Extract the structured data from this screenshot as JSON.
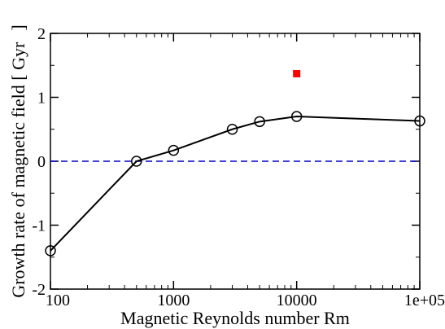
{
  "chart_data": {
    "type": "line",
    "title": "",
    "xlabel": "Magnetic Reynolds number Rm",
    "ylabel": "Growth rate of magnetic field [ Gyr",
    "ylabel_close": "]",
    "xscale": "log",
    "xlim": [
      100,
      100000
    ],
    "ylim": [
      -2,
      2
    ],
    "x_tick_labels": [
      "100",
      "1000",
      "10000",
      "1e+05"
    ],
    "y_tick_labels": [
      "2",
      "1",
      "0",
      "-1",
      "-2"
    ],
    "series": [
      {
        "x": [
          100,
          500,
          1000,
          3000,
          5000,
          10000,
          100000
        ],
        "y": [
          -1.4,
          0.0,
          0.17,
          0.5,
          0.62,
          0.7,
          0.63
        ],
        "line_color": "#000000",
        "marker": "open-circle"
      },
      {
        "x": [
          10000
        ],
        "y": [
          1.37
        ],
        "marker": "square",
        "marker_color": "#ff0000"
      }
    ],
    "reference_line": {
      "y": 0,
      "style": "dashed",
      "color": "#0000cc"
    },
    "grid": false,
    "legend": "none"
  }
}
